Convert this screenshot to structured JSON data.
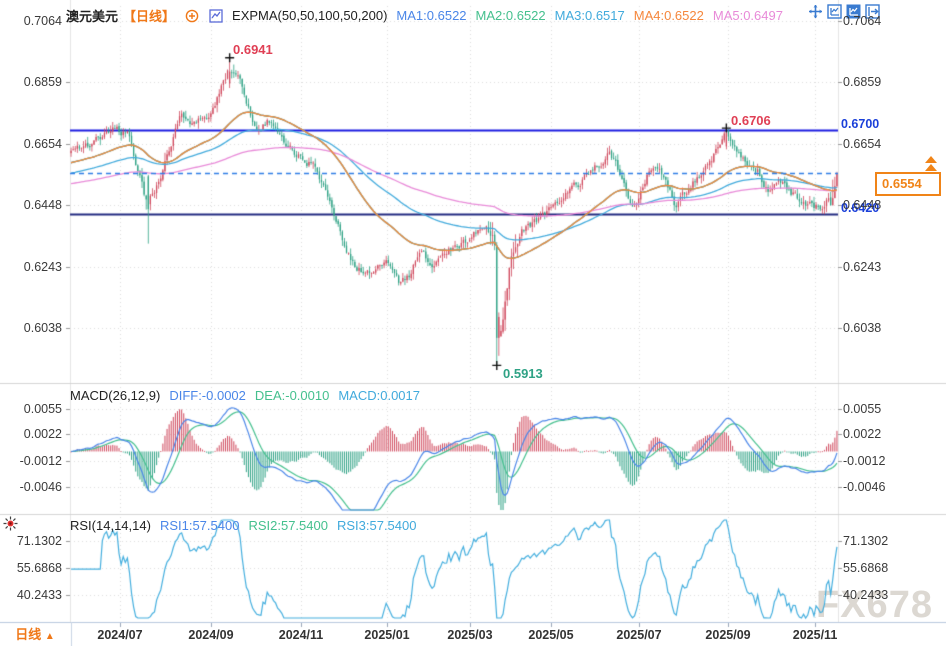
{
  "header": {
    "symbol": "澳元美元",
    "timeframe": "【日线】",
    "indicator": "EXPMA(50,50,100,50,200)",
    "ma_values": [
      {
        "label": "MA1:0.6522",
        "color": "#4a86e8"
      },
      {
        "label": "MA2:0.6522",
        "color": "#45c08e"
      },
      {
        "label": "MA3:0.6517",
        "color": "#41aadc"
      },
      {
        "label": "MA4:0.6522",
        "color": "#f5873c"
      },
      {
        "label": "MA5:0.6497",
        "color": "#e88ad8"
      }
    ]
  },
  "toolbar": {
    "icons": [
      "crosshair-icon",
      "chart-window-icon",
      "chart-window-active-icon",
      "popout-icon"
    ]
  },
  "main_panel": {
    "axis_labels": [
      "0.7064",
      "0.6859",
      "0.6654",
      "0.6448",
      "0.6243",
      "0.6038"
    ],
    "axis_values": [
      0.7064,
      0.6859,
      0.6654,
      0.6448,
      0.6243,
      0.6038
    ],
    "annotations": {
      "high_2024": "0.6941",
      "high_2025": "0.6706",
      "crash_low": "0.5913"
    },
    "levels": {
      "resistance_label": "0.6700",
      "support_label": "0.6420"
    },
    "price_box": {
      "value": "0.6554"
    }
  },
  "macd_panel": {
    "title": "MACD(26,12,9)",
    "values": [
      {
        "label": "DIFF:-0.0002",
        "color": "#4a86e8"
      },
      {
        "label": "DEA:-0.0010",
        "color": "#45c08e"
      },
      {
        "label": "MACD:0.0017",
        "color": "#41aadc"
      }
    ],
    "axis_labels": [
      "0.0055",
      "0.0022",
      "-0.0012",
      "-0.0046"
    ],
    "axis_values": [
      0.0055,
      0.0022,
      -0.0012,
      -0.0046
    ]
  },
  "rsi_panel": {
    "title": "RSI(14,14,14)",
    "values": [
      {
        "label": "RSI1:57.5400",
        "color": "#4a86e8"
      },
      {
        "label": "RSI2:57.5400",
        "color": "#45c08e"
      },
      {
        "label": "RSI3:57.5400",
        "color": "#41aadc"
      }
    ],
    "axis_labels": [
      "71.1302",
      "55.6868",
      "40.2433"
    ],
    "axis_values": [
      71.1302,
      55.6868,
      40.2433
    ]
  },
  "bottom_bar": {
    "timeframe": "日线",
    "arrow": "▲",
    "dates": [
      "2024/07",
      "2024/09",
      "2024/11",
      "2025/01",
      "2025/03",
      "2025/05",
      "2025/07",
      "2025/09",
      "2025/11"
    ]
  },
  "watermark": "FX678",
  "colors": {
    "up": "#d04a5e",
    "down": "#2fa285",
    "ma_blue": "#4a86e8",
    "ma_green": "#45c08e",
    "ma_cyan": "#41aadc",
    "ma_orange": "#f5873c",
    "ma_pink": "#e88ad8",
    "resistance_line": "#1b1be0",
    "support_line": "#232b80",
    "last_price_line": "#2e7de5",
    "annotation_red": "#e04055",
    "annotation_green": "#2fa285",
    "annotation_blue": "#1a3fd9",
    "price_box": "#f08418",
    "diff_line": "#4a86e8",
    "dea_line": "#45c08e",
    "rsi_line": "#43aede",
    "grid": "#dcdcdc",
    "axis_text": "#3a3a3a",
    "separator": "#d4d4d4",
    "bottom_border": "#b9c8de",
    "tick": "#9aa6b8",
    "watermark": "#dcd8d2"
  },
  "chart_data": {
    "type": "candlestick+macd+rsi",
    "symbol": "AUD/USD 澳元美元",
    "period": "daily",
    "n_candles": 368,
    "seed": 11,
    "price_axis": {
      "top": 0.7064,
      "bottom": 0.6038,
      "ticks": [
        0.7064,
        0.6859,
        0.6654,
        0.6448,
        0.6243,
        0.6038
      ]
    },
    "x_ticks": [
      {
        "label": "2024/07",
        "pos": 0.0651
      },
      {
        "label": "2024/09",
        "pos": 0.1836
      },
      {
        "label": "2024/11",
        "pos": 0.3008
      },
      {
        "label": "2025/01",
        "pos": 0.4128
      },
      {
        "label": "2025/03",
        "pos": 0.5208
      },
      {
        "label": "2025/05",
        "pos": 0.6263
      },
      {
        "label": "2025/07",
        "pos": 0.7409
      },
      {
        "label": "2025/09",
        "pos": 0.8568
      },
      {
        "label": "2025/11",
        "pos": 0.9701
      }
    ],
    "close_anchors": [
      [
        0.0,
        0.663
      ],
      [
        0.03,
        0.666
      ],
      [
        0.055,
        0.671
      ],
      [
        0.075,
        0.668
      ],
      [
        0.1,
        0.6445
      ],
      [
        0.118,
        0.655
      ],
      [
        0.142,
        0.675
      ],
      [
        0.162,
        0.672
      ],
      [
        0.185,
        0.6765
      ],
      [
        0.206,
        0.69
      ],
      [
        0.222,
        0.6855
      ],
      [
        0.24,
        0.67
      ],
      [
        0.258,
        0.6735
      ],
      [
        0.28,
        0.6655
      ],
      [
        0.301,
        0.6605
      ],
      [
        0.32,
        0.6575
      ],
      [
        0.338,
        0.6465
      ],
      [
        0.355,
        0.6335
      ],
      [
        0.372,
        0.624
      ],
      [
        0.39,
        0.6215
      ],
      [
        0.41,
        0.626
      ],
      [
        0.428,
        0.619
      ],
      [
        0.443,
        0.622
      ],
      [
        0.457,
        0.6295
      ],
      [
        0.472,
        0.624
      ],
      [
        0.488,
        0.629
      ],
      [
        0.505,
        0.6315
      ],
      [
        0.521,
        0.6335
      ],
      [
        0.538,
        0.639
      ],
      [
        0.551,
        0.6345
      ],
      [
        0.5565,
        0.6
      ],
      [
        0.563,
        0.606
      ],
      [
        0.574,
        0.627
      ],
      [
        0.59,
        0.637
      ],
      [
        0.605,
        0.6395
      ],
      [
        0.62,
        0.642
      ],
      [
        0.638,
        0.6465
      ],
      [
        0.652,
        0.651
      ],
      [
        0.664,
        0.652
      ],
      [
        0.676,
        0.655
      ],
      [
        0.69,
        0.659
      ],
      [
        0.704,
        0.6625
      ],
      [
        0.718,
        0.654
      ],
      [
        0.733,
        0.644
      ],
      [
        0.748,
        0.653
      ],
      [
        0.762,
        0.659
      ],
      [
        0.776,
        0.654
      ],
      [
        0.79,
        0.645
      ],
      [
        0.805,
        0.65
      ],
      [
        0.82,
        0.655
      ],
      [
        0.835,
        0.66
      ],
      [
        0.848,
        0.6645
      ],
      [
        0.856,
        0.669
      ],
      [
        0.868,
        0.6635
      ],
      [
        0.882,
        0.659
      ],
      [
        0.896,
        0.6565
      ],
      [
        0.91,
        0.6505
      ],
      [
        0.925,
        0.653
      ],
      [
        0.94,
        0.649
      ],
      [
        0.955,
        0.646
      ],
      [
        0.97,
        0.6445
      ],
      [
        0.984,
        0.6435
      ],
      [
        1.0,
        0.6554
      ]
    ],
    "key_points": {
      "high_2024": {
        "t": 0.206,
        "price": 0.6941
      },
      "spike_low_2024": {
        "t": 0.1,
        "price": 0.632
      },
      "crash_low": {
        "t": 0.5565,
        "price": 0.5913
      },
      "high_2025": {
        "t": 0.856,
        "price": 0.6706
      },
      "last_close": 0.6554
    },
    "levels": {
      "resistance": 0.67,
      "support": 0.642,
      "last_price": 0.6554
    },
    "expma_periods": [
      50,
      50,
      100,
      50,
      200
    ],
    "macd_params": [
      26,
      12,
      9
    ],
    "macd_axis": {
      "ticks": [
        0.0055,
        0.0022,
        -0.0012,
        -0.0046
      ]
    },
    "rsi_params": [
      14,
      14,
      14
    ],
    "rsi_axis": {
      "ticks": [
        71.1302,
        55.6868,
        40.2433
      ]
    }
  }
}
